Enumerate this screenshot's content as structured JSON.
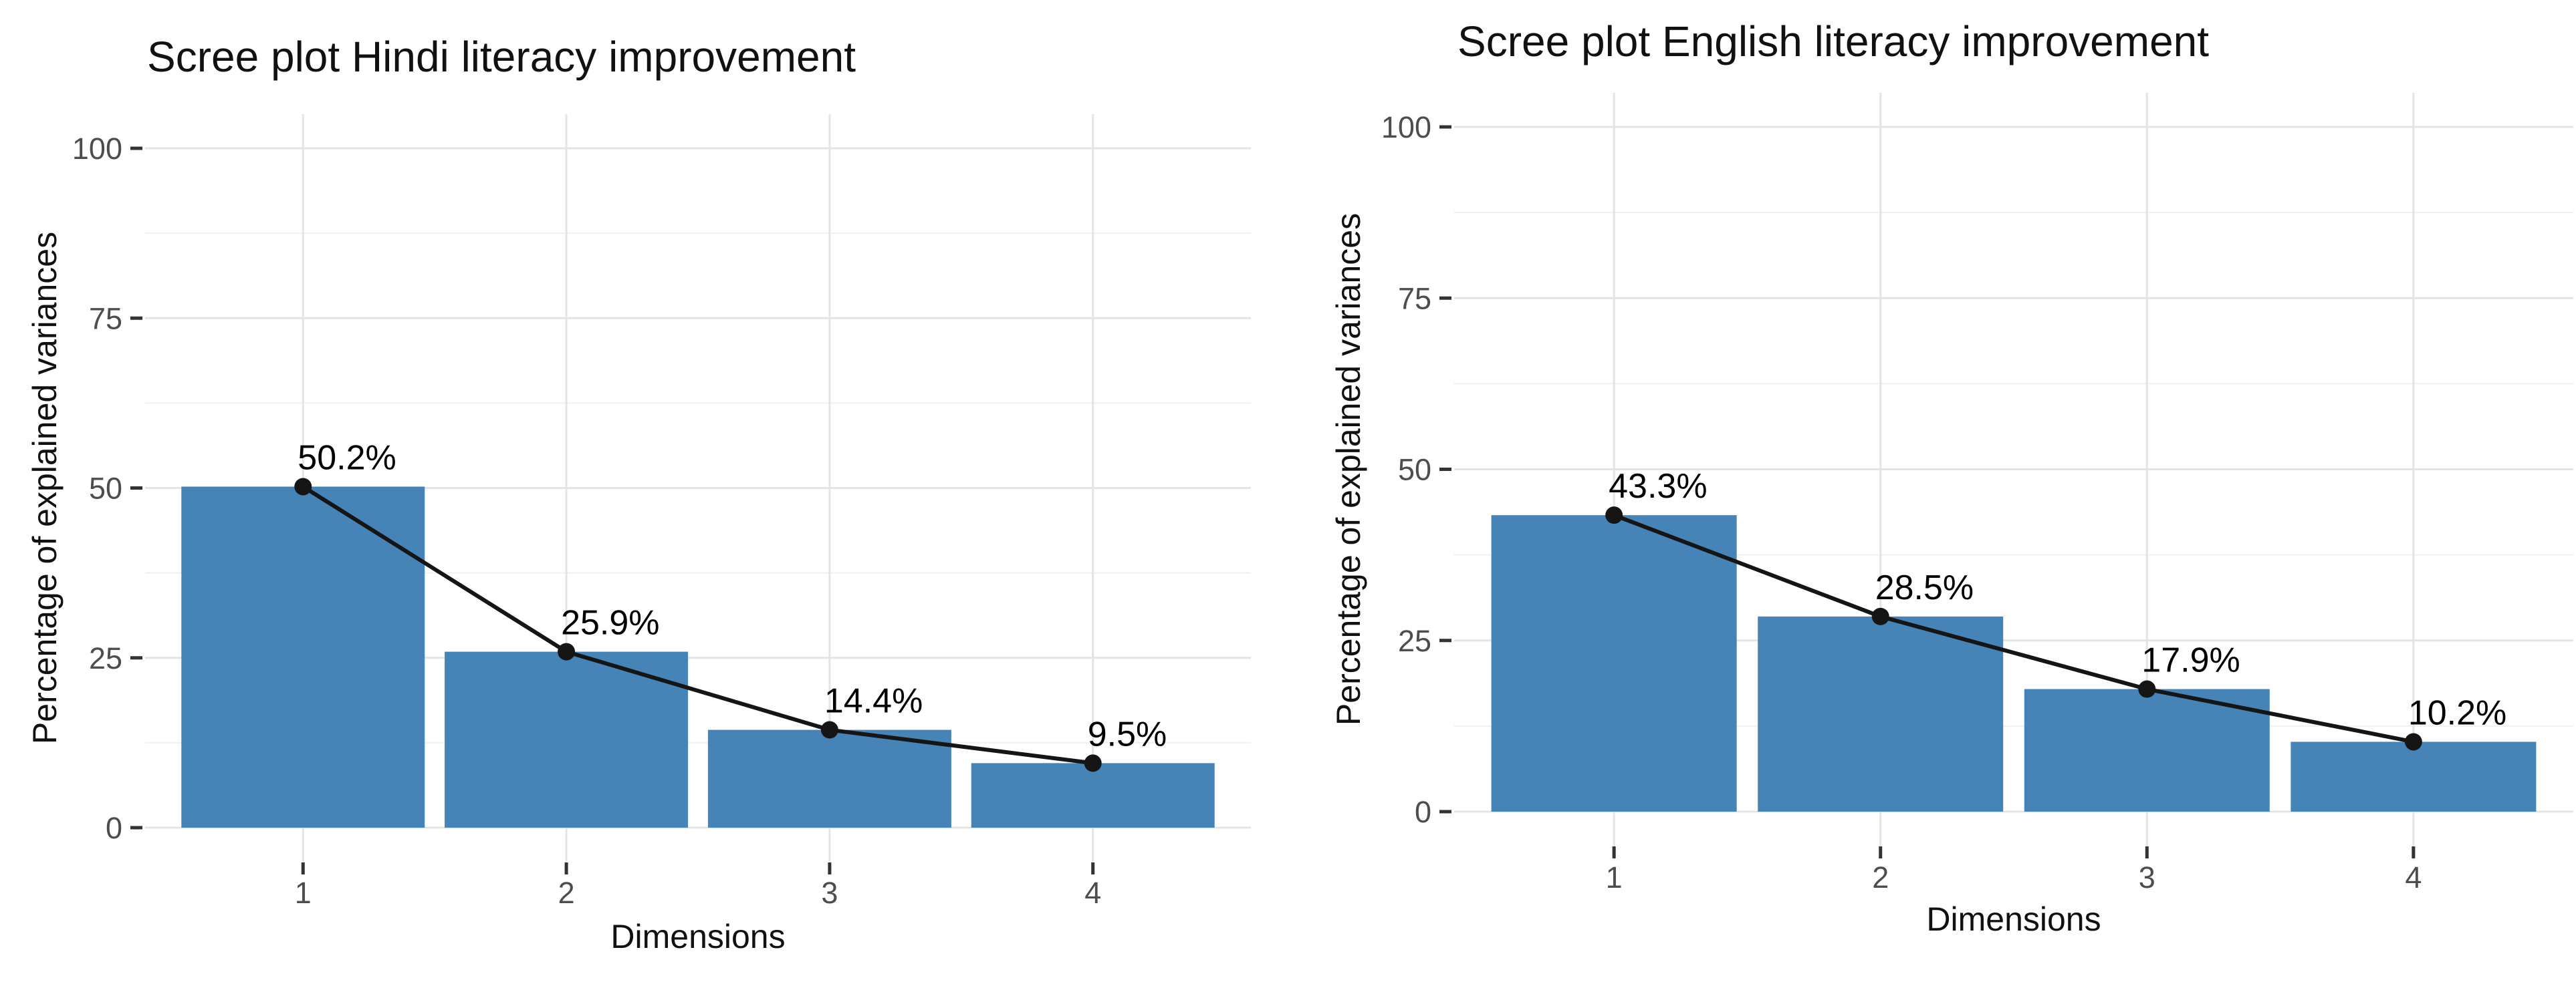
{
  "page": {
    "background": "#ffffff"
  },
  "chart_data": [
    {
      "type": "bar",
      "overlay": "line",
      "title": "Scree plot Hindi literacy improvement",
      "xlabel": "Dimensions",
      "ylabel": "Percentage of explained variances",
      "categories": [
        "1",
        "2",
        "3",
        "4"
      ],
      "values": [
        50.2,
        25.9,
        14.4,
        9.5
      ],
      "point_labels": [
        "50.2%",
        "25.9%",
        "14.4%",
        "9.5%"
      ],
      "y_ticks": [
        0,
        25,
        50,
        75,
        100
      ],
      "y_tick_labels": [
        "0",
        "25",
        "50",
        "75",
        "100"
      ],
      "y_minor_gridlines": [
        12.5,
        37.5,
        62.5,
        87.5
      ],
      "ylim": [
        0,
        100
      ],
      "grid": true,
      "legend": "none",
      "colors": {
        "bar": "#4683B7",
        "line": "#151515",
        "point": "#151515",
        "grid_major": "#E4E4E4",
        "grid_minor": "#F0F0F0",
        "tick": "#333333",
        "tick_label": "#4D4D4D",
        "axis_title": "#111111",
        "title": "#111111",
        "label": "#000000"
      }
    },
    {
      "type": "bar",
      "overlay": "line",
      "title": "Scree plot English literacy improvement",
      "xlabel": "Dimensions",
      "ylabel": "Percentage of explained variances",
      "categories": [
        "1",
        "2",
        "3",
        "4"
      ],
      "values": [
        43.3,
        28.5,
        17.9,
        10.2
      ],
      "point_labels": [
        "43.3%",
        "28.5%",
        "17.9%",
        "10.2%"
      ],
      "y_ticks": [
        0,
        25,
        50,
        75,
        100
      ],
      "y_tick_labels": [
        "0",
        "25",
        "50",
        "75",
        "100"
      ],
      "y_minor_gridlines": [
        12.5,
        37.5,
        62.5,
        87.5
      ],
      "ylim": [
        0,
        100
      ],
      "grid": true,
      "legend": "none",
      "colors": {
        "bar": "#4683B7",
        "line": "#151515",
        "point": "#151515",
        "grid_major": "#E4E4E4",
        "grid_minor": "#F0F0F0",
        "tick": "#333333",
        "tick_label": "#4D4D4D",
        "axis_title": "#111111",
        "title": "#111111",
        "label": "#000000"
      }
    }
  ]
}
